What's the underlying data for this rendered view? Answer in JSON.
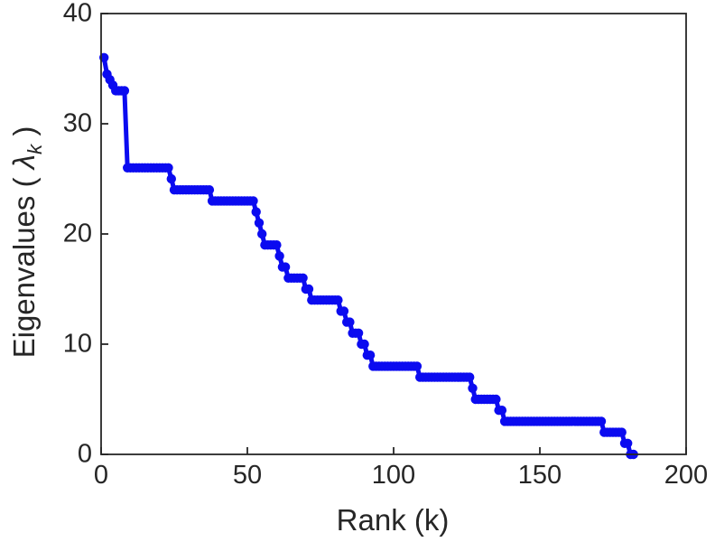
{
  "chart_data": {
    "type": "line",
    "title": "",
    "xlabel": "Rank (k)",
    "ylabel": "Eigenvalues ( λk )",
    "ylabel_parts": {
      "prefix": "Eigenvalues ( ",
      "symbol": "λ",
      "subscript": "k",
      "suffix": " )"
    },
    "xlim": [
      0,
      200
    ],
    "ylim": [
      0,
      40
    ],
    "x_ticks": [
      0,
      50,
      100,
      150,
      200
    ],
    "y_ticks": [
      0,
      10,
      20,
      30,
      40
    ],
    "grid": false,
    "legend": null,
    "box": true,
    "marker": "dot",
    "line_color": "#0b0bf0",
    "axis_color": "#262626",
    "text_color": "#262626",
    "background": "#ffffff",
    "series": [
      {
        "name": "eigenvalues",
        "x_rule": "k = index + 1",
        "k_start": 1,
        "values": [
          36,
          34.5,
          34,
          33.5,
          33,
          33,
          33,
          33,
          26,
          26,
          26,
          26,
          26,
          26,
          26,
          26,
          26,
          26,
          26,
          26,
          26,
          26,
          26,
          25,
          24,
          24,
          24,
          24,
          24,
          24,
          24,
          24,
          24,
          24,
          24,
          24,
          24,
          23,
          23,
          23,
          23,
          23,
          23,
          23,
          23,
          23,
          23,
          23,
          23,
          23,
          23,
          23,
          22,
          21,
          20,
          19,
          19,
          19,
          19,
          19,
          18,
          17,
          17,
          16,
          16,
          16,
          16,
          16,
          16,
          15,
          15,
          14,
          14,
          14,
          14,
          14,
          14,
          14,
          14,
          14,
          14,
          13,
          13,
          12,
          12,
          11,
          11,
          11,
          10,
          10,
          9,
          9,
          8,
          8,
          8,
          8,
          8,
          8,
          8,
          8,
          8,
          8,
          8,
          8,
          8,
          8,
          8,
          8,
          7,
          7,
          7,
          7,
          7,
          7,
          7,
          7,
          7,
          7,
          7,
          7,
          7,
          7,
          7,
          7,
          7,
          7,
          6,
          5,
          5,
          5,
          5,
          5,
          5,
          5,
          5,
          4,
          4,
          3,
          3,
          3,
          3,
          3,
          3,
          3,
          3,
          3,
          3,
          3,
          3,
          3,
          3,
          3,
          3,
          3,
          3,
          3,
          3,
          3,
          3,
          3,
          3,
          3,
          3,
          3,
          3,
          3,
          3,
          3,
          3,
          3,
          3,
          2,
          2,
          2,
          2,
          2,
          2,
          2,
          1,
          1,
          0,
          0
        ]
      }
    ]
  }
}
